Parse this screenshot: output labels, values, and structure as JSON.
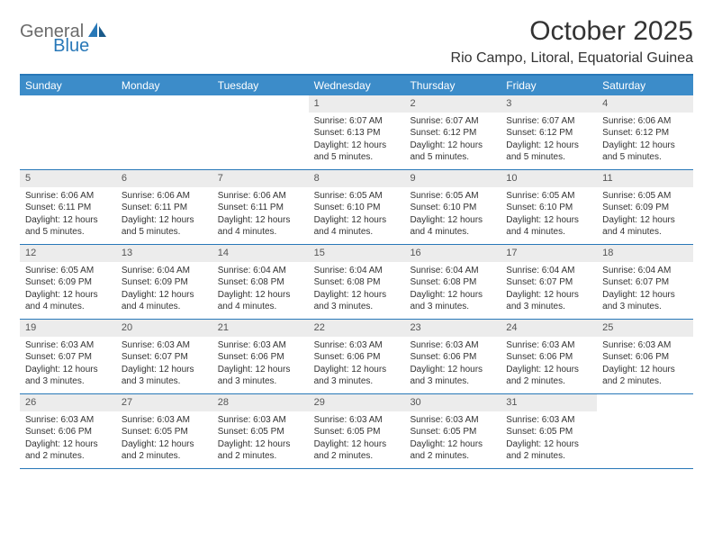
{
  "logo": {
    "general": "General",
    "blue": "Blue"
  },
  "title": "October 2025",
  "location": "Rio Campo, Litoral, Equatorial Guinea",
  "colors": {
    "header_bar": "#3c8cc9",
    "border": "#2878b8",
    "daynum_bg": "#ececec",
    "text": "#333333",
    "logo_gray": "#6b6b6b",
    "logo_blue": "#2878b8"
  },
  "dayheads": [
    "Sunday",
    "Monday",
    "Tuesday",
    "Wednesday",
    "Thursday",
    "Friday",
    "Saturday"
  ],
  "weeks": [
    [
      {
        "n": "",
        "sr": "",
        "ss": "",
        "dl": ""
      },
      {
        "n": "",
        "sr": "",
        "ss": "",
        "dl": ""
      },
      {
        "n": "",
        "sr": "",
        "ss": "",
        "dl": ""
      },
      {
        "n": "1",
        "sr": "Sunrise: 6:07 AM",
        "ss": "Sunset: 6:13 PM",
        "dl": "Daylight: 12 hours and 5 minutes."
      },
      {
        "n": "2",
        "sr": "Sunrise: 6:07 AM",
        "ss": "Sunset: 6:12 PM",
        "dl": "Daylight: 12 hours and 5 minutes."
      },
      {
        "n": "3",
        "sr": "Sunrise: 6:07 AM",
        "ss": "Sunset: 6:12 PM",
        "dl": "Daylight: 12 hours and 5 minutes."
      },
      {
        "n": "4",
        "sr": "Sunrise: 6:06 AM",
        "ss": "Sunset: 6:12 PM",
        "dl": "Daylight: 12 hours and 5 minutes."
      }
    ],
    [
      {
        "n": "5",
        "sr": "Sunrise: 6:06 AM",
        "ss": "Sunset: 6:11 PM",
        "dl": "Daylight: 12 hours and 5 minutes."
      },
      {
        "n": "6",
        "sr": "Sunrise: 6:06 AM",
        "ss": "Sunset: 6:11 PM",
        "dl": "Daylight: 12 hours and 5 minutes."
      },
      {
        "n": "7",
        "sr": "Sunrise: 6:06 AM",
        "ss": "Sunset: 6:11 PM",
        "dl": "Daylight: 12 hours and 4 minutes."
      },
      {
        "n": "8",
        "sr": "Sunrise: 6:05 AM",
        "ss": "Sunset: 6:10 PM",
        "dl": "Daylight: 12 hours and 4 minutes."
      },
      {
        "n": "9",
        "sr": "Sunrise: 6:05 AM",
        "ss": "Sunset: 6:10 PM",
        "dl": "Daylight: 12 hours and 4 minutes."
      },
      {
        "n": "10",
        "sr": "Sunrise: 6:05 AM",
        "ss": "Sunset: 6:10 PM",
        "dl": "Daylight: 12 hours and 4 minutes."
      },
      {
        "n": "11",
        "sr": "Sunrise: 6:05 AM",
        "ss": "Sunset: 6:09 PM",
        "dl": "Daylight: 12 hours and 4 minutes."
      }
    ],
    [
      {
        "n": "12",
        "sr": "Sunrise: 6:05 AM",
        "ss": "Sunset: 6:09 PM",
        "dl": "Daylight: 12 hours and 4 minutes."
      },
      {
        "n": "13",
        "sr": "Sunrise: 6:04 AM",
        "ss": "Sunset: 6:09 PM",
        "dl": "Daylight: 12 hours and 4 minutes."
      },
      {
        "n": "14",
        "sr": "Sunrise: 6:04 AM",
        "ss": "Sunset: 6:08 PM",
        "dl": "Daylight: 12 hours and 4 minutes."
      },
      {
        "n": "15",
        "sr": "Sunrise: 6:04 AM",
        "ss": "Sunset: 6:08 PM",
        "dl": "Daylight: 12 hours and 3 minutes."
      },
      {
        "n": "16",
        "sr": "Sunrise: 6:04 AM",
        "ss": "Sunset: 6:08 PM",
        "dl": "Daylight: 12 hours and 3 minutes."
      },
      {
        "n": "17",
        "sr": "Sunrise: 6:04 AM",
        "ss": "Sunset: 6:07 PM",
        "dl": "Daylight: 12 hours and 3 minutes."
      },
      {
        "n": "18",
        "sr": "Sunrise: 6:04 AM",
        "ss": "Sunset: 6:07 PM",
        "dl": "Daylight: 12 hours and 3 minutes."
      }
    ],
    [
      {
        "n": "19",
        "sr": "Sunrise: 6:03 AM",
        "ss": "Sunset: 6:07 PM",
        "dl": "Daylight: 12 hours and 3 minutes."
      },
      {
        "n": "20",
        "sr": "Sunrise: 6:03 AM",
        "ss": "Sunset: 6:07 PM",
        "dl": "Daylight: 12 hours and 3 minutes."
      },
      {
        "n": "21",
        "sr": "Sunrise: 6:03 AM",
        "ss": "Sunset: 6:06 PM",
        "dl": "Daylight: 12 hours and 3 minutes."
      },
      {
        "n": "22",
        "sr": "Sunrise: 6:03 AM",
        "ss": "Sunset: 6:06 PM",
        "dl": "Daylight: 12 hours and 3 minutes."
      },
      {
        "n": "23",
        "sr": "Sunrise: 6:03 AM",
        "ss": "Sunset: 6:06 PM",
        "dl": "Daylight: 12 hours and 3 minutes."
      },
      {
        "n": "24",
        "sr": "Sunrise: 6:03 AM",
        "ss": "Sunset: 6:06 PM",
        "dl": "Daylight: 12 hours and 2 minutes."
      },
      {
        "n": "25",
        "sr": "Sunrise: 6:03 AM",
        "ss": "Sunset: 6:06 PM",
        "dl": "Daylight: 12 hours and 2 minutes."
      }
    ],
    [
      {
        "n": "26",
        "sr": "Sunrise: 6:03 AM",
        "ss": "Sunset: 6:06 PM",
        "dl": "Daylight: 12 hours and 2 minutes."
      },
      {
        "n": "27",
        "sr": "Sunrise: 6:03 AM",
        "ss": "Sunset: 6:05 PM",
        "dl": "Daylight: 12 hours and 2 minutes."
      },
      {
        "n": "28",
        "sr": "Sunrise: 6:03 AM",
        "ss": "Sunset: 6:05 PM",
        "dl": "Daylight: 12 hours and 2 minutes."
      },
      {
        "n": "29",
        "sr": "Sunrise: 6:03 AM",
        "ss": "Sunset: 6:05 PM",
        "dl": "Daylight: 12 hours and 2 minutes."
      },
      {
        "n": "30",
        "sr": "Sunrise: 6:03 AM",
        "ss": "Sunset: 6:05 PM",
        "dl": "Daylight: 12 hours and 2 minutes."
      },
      {
        "n": "31",
        "sr": "Sunrise: 6:03 AM",
        "ss": "Sunset: 6:05 PM",
        "dl": "Daylight: 12 hours and 2 minutes."
      },
      {
        "n": "",
        "sr": "",
        "ss": "",
        "dl": ""
      }
    ]
  ]
}
